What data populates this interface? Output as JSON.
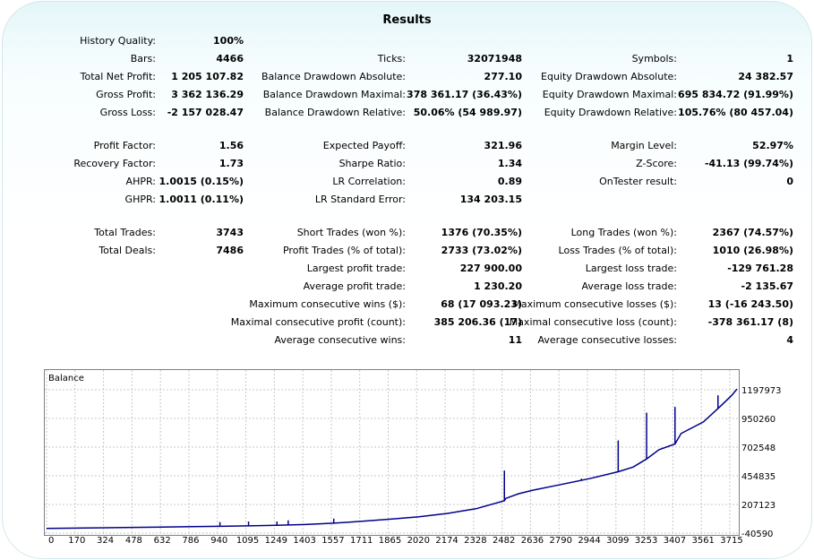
{
  "title": "Results",
  "stats": {
    "col1": [
      {
        "label": "History Quality:",
        "value": "100%"
      },
      {
        "label": "Bars:",
        "value": "4466"
      },
      {
        "label": "Total Net Profit:",
        "value": "1 205 107.82"
      },
      {
        "label": "Gross Profit:",
        "value": "3 362 136.29"
      },
      {
        "label": "Gross Loss:",
        "value": "-2 157 028.47"
      },
      {
        "label": "Profit Factor:",
        "value": "1.56"
      },
      {
        "label": "Recovery Factor:",
        "value": "1.73"
      },
      {
        "label": "AHPR:",
        "value": "1.0015 (0.15%)"
      },
      {
        "label": "GHPR:",
        "value": "1.0011 (0.11%)"
      },
      {
        "label": "Total Trades:",
        "value": "3743"
      },
      {
        "label": "Total Deals:",
        "value": "7486"
      }
    ],
    "col2": [
      {
        "label": "Ticks:",
        "value": "32071948"
      },
      {
        "label": "Balance Drawdown Absolute:",
        "value": "277.10"
      },
      {
        "label": "Balance Drawdown Maximal:",
        "value": "378 361.17 (36.43%)"
      },
      {
        "label": "Balance Drawdown Relative:",
        "value": "50.06% (54 989.97)"
      },
      {
        "label": "Expected Payoff:",
        "value": "321.96"
      },
      {
        "label": "Sharpe Ratio:",
        "value": "1.34"
      },
      {
        "label": "LR Correlation:",
        "value": "0.89"
      },
      {
        "label": "LR Standard Error:",
        "value": "134 203.15"
      },
      {
        "label": "Short Trades (won %):",
        "value": "1376 (70.35%)"
      },
      {
        "label": "Profit Trades (% of total):",
        "value": "2733 (73.02%)"
      },
      {
        "label": "Largest profit trade:",
        "value": "227 900.00"
      },
      {
        "label": "Average profit trade:",
        "value": "1 230.20"
      },
      {
        "label": "Maximum consecutive wins ($):",
        "value": "68 (17 093.23)"
      },
      {
        "label": "Maximal consecutive profit (count):",
        "value": "385 206.36 (17)"
      },
      {
        "label": "Average consecutive wins:",
        "value": "11"
      }
    ],
    "col3": [
      {
        "label": "Symbols:",
        "value": "1"
      },
      {
        "label": "Equity Drawdown Absolute:",
        "value": "24 382.57"
      },
      {
        "label": "Equity Drawdown Maximal:",
        "value": "695 834.72 (91.99%)"
      },
      {
        "label": "Equity Drawdown Relative:",
        "value": "105.76% (80 457.04)"
      },
      {
        "label": "Margin Level:",
        "value": "52.97%"
      },
      {
        "label": "Z-Score:",
        "value": "-41.13 (99.74%)"
      },
      {
        "label": "OnTester result:",
        "value": "0"
      },
      {
        "label": "Long Trades (won %):",
        "value": "2367 (74.57%)"
      },
      {
        "label": "Loss Trades (% of total):",
        "value": "1010 (26.98%)"
      },
      {
        "label": "Largest loss trade:",
        "value": "-129 761.28"
      },
      {
        "label": "Average loss trade:",
        "value": "-2 135.67"
      },
      {
        "label": "Maximum consecutive losses ($):",
        "value": "13 (-16 243.50)"
      },
      {
        "label": "Maximal consecutive loss (count):",
        "value": "-378 361.17 (8)"
      },
      {
        "label": "Average consecutive losses:",
        "value": "4"
      }
    ]
  },
  "chart_data": {
    "type": "line",
    "series": [
      {
        "name": "Balance",
        "color": "#00008b"
      }
    ],
    "x_ticks": [
      "0",
      "170",
      "324",
      "478",
      "632",
      "786",
      "940",
      "1095",
      "1249",
      "1403",
      "1557",
      "1711",
      "1865",
      "2020",
      "2174",
      "2328",
      "2482",
      "2636",
      "2790",
      "2944",
      "3099",
      "3253",
      "3407",
      "3561",
      "3715"
    ],
    "y_ticks": [
      "1197973",
      "950260",
      "702548",
      "454835",
      "207123",
      "-40590"
    ],
    "ylim": [
      -40590,
      1197973
    ],
    "xlim": [
      0,
      3743
    ],
    "grid": true,
    "balance_points": [
      [
        0,
        0
      ],
      [
        170,
        3000
      ],
      [
        324,
        6000
      ],
      [
        478,
        9000
      ],
      [
        632,
        12000
      ],
      [
        786,
        15000
      ],
      [
        940,
        18000
      ],
      [
        1095,
        22000
      ],
      [
        1249,
        27000
      ],
      [
        1403,
        34000
      ],
      [
        1557,
        45000
      ],
      [
        1711,
        62000
      ],
      [
        1865,
        80000
      ],
      [
        2020,
        100000
      ],
      [
        2174,
        130000
      ],
      [
        2328,
        170000
      ],
      [
        2482,
        240000
      ],
      [
        2490,
        260000
      ],
      [
        2560,
        300000
      ],
      [
        2636,
        330000
      ],
      [
        2790,
        380000
      ],
      [
        2944,
        430000
      ],
      [
        3099,
        490000
      ],
      [
        3180,
        530000
      ],
      [
        3253,
        600000
      ],
      [
        3320,
        680000
      ],
      [
        3407,
        730000
      ],
      [
        3440,
        820000
      ],
      [
        3561,
        920000
      ],
      [
        3650,
        1050000
      ],
      [
        3715,
        1150000
      ],
      [
        3743,
        1205108
      ]
    ],
    "spikes": [
      [
        940,
        55000
      ],
      [
        1095,
        60000
      ],
      [
        1249,
        60000
      ],
      [
        1310,
        70000
      ],
      [
        1557,
        85000
      ],
      [
        2482,
        500000
      ],
      [
        2900,
        430000
      ],
      [
        3099,
        760000
      ],
      [
        3253,
        1000000
      ],
      [
        3407,
        1050000
      ],
      [
        3640,
        1150000
      ]
    ]
  }
}
